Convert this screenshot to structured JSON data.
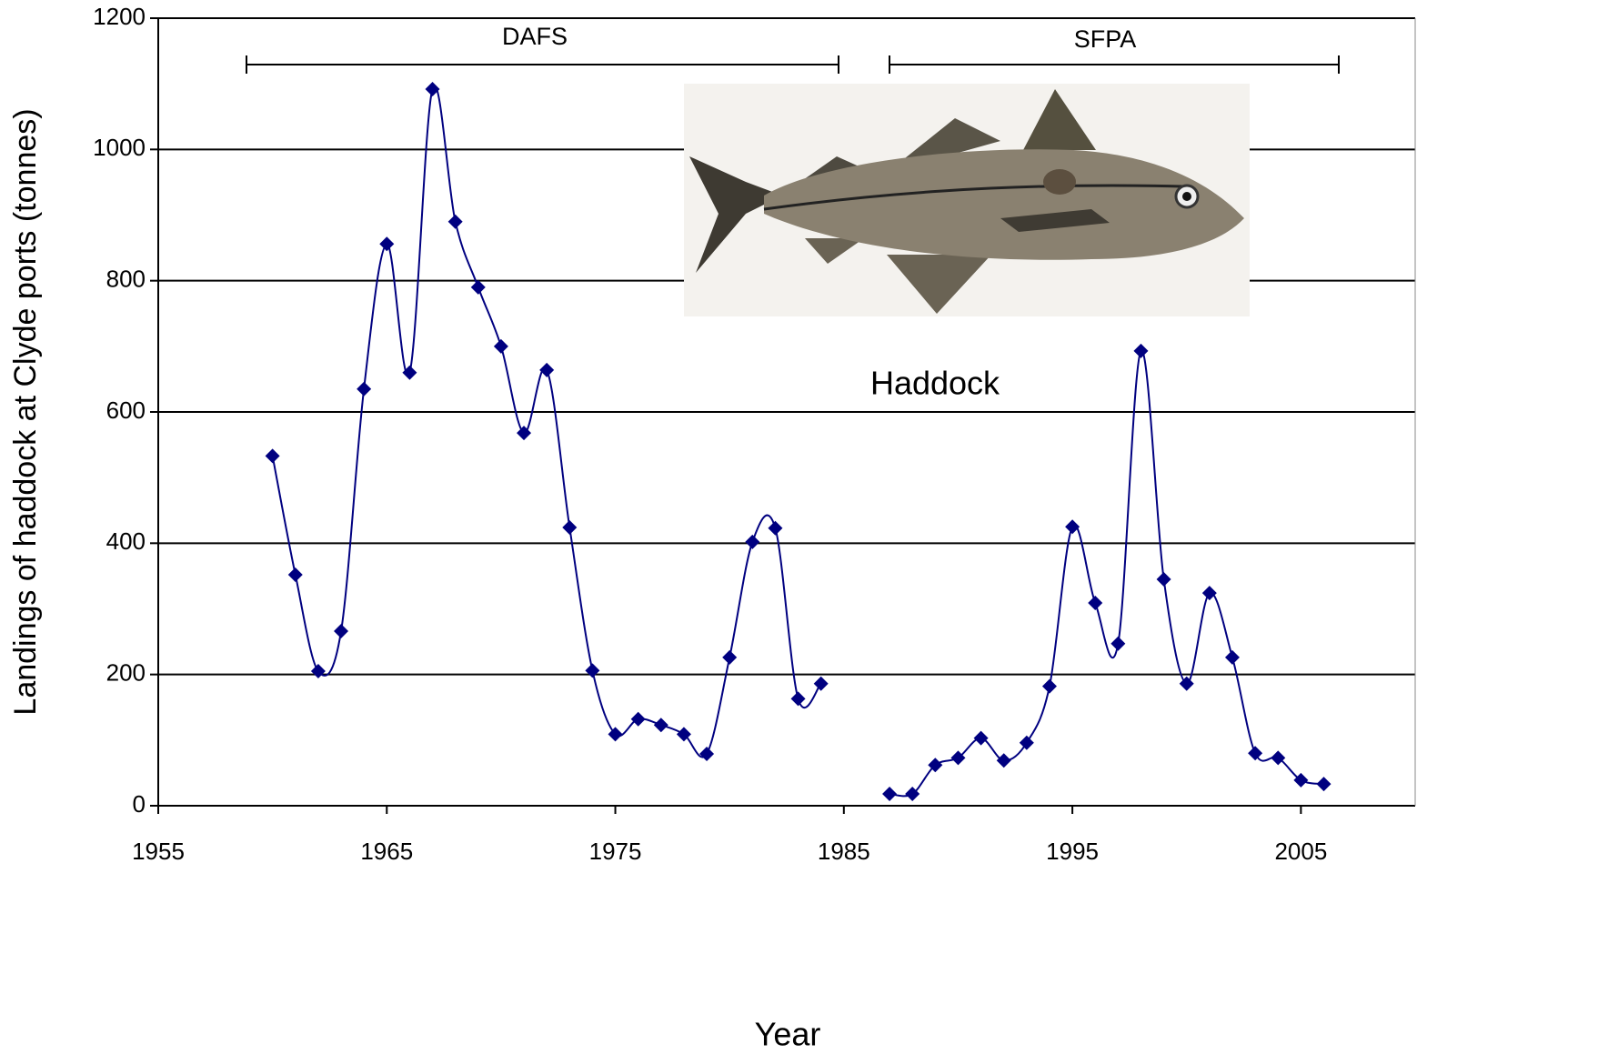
{
  "chart_data": {
    "type": "line",
    "y_label": "Landings of haddock at Clyde ports (tonnes)",
    "x_label": "Year",
    "annotations": [
      "DAFS",
      "SFPA",
      "Haddock"
    ],
    "x": [
      1960,
      1961,
      1962,
      1963,
      1964,
      1965,
      1966,
      1967,
      1968,
      1969,
      1970,
      1971,
      1972,
      1973,
      1974,
      1975,
      1976,
      1977,
      1978,
      1979,
      1980,
      1981,
      1982,
      1983,
      1984,
      1985,
      1986,
      1987,
      1988,
      1989,
      1990,
      1991,
      1992,
      1993,
      1994,
      1995,
      1996,
      1997,
      1998,
      1999,
      2000,
      2001,
      2002,
      2003,
      2004,
      2005,
      2006
    ],
    "series": [
      {
        "color": "#000080",
        "values": [
          533,
          352,
          205,
          266,
          635,
          856,
          660,
          1092,
          890,
          790,
          700,
          568,
          664,
          424,
          206,
          109,
          132,
          123,
          109,
          79,
          226,
          402,
          423,
          163,
          186,
          null,
          null,
          18,
          18,
          62,
          73,
          103,
          69,
          96,
          182,
          425,
          309,
          247,
          693,
          345,
          186,
          324,
          226,
          80,
          73,
          39,
          33
        ]
      }
    ],
    "xlim": [
      1955,
      2010
    ],
    "xticks": [
      1955,
      1965,
      1975,
      1985,
      1995,
      2005
    ],
    "ylim": [
      0,
      1200
    ],
    "yticks": [
      0,
      200,
      400,
      600,
      800,
      1000,
      1200
    ],
    "grid": true
  }
}
